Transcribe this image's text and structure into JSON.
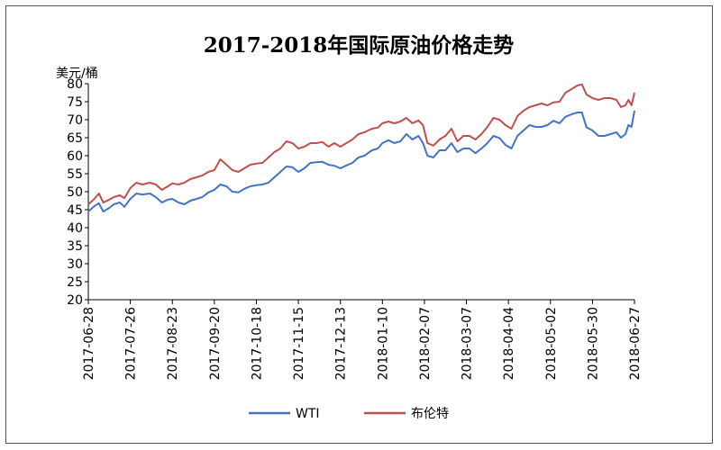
{
  "chart_data": {
    "type": "line",
    "title": "2017-2018年国际原油价格走势",
    "ylabel": "美元/桶",
    "ylim": [
      20,
      80
    ],
    "yticks": [
      20,
      25,
      30,
      35,
      40,
      45,
      50,
      55,
      60,
      65,
      70,
      75,
      80
    ],
    "xlim": [
      "2017-06-28",
      "2018-06-27"
    ],
    "xticks": [
      "2017-06-28",
      "2017-07-26",
      "2017-08-23",
      "2017-09-20",
      "2017-10-18",
      "2017-11-15",
      "2017-12-13",
      "2018-01-10",
      "2018-02-07",
      "2018-03-07",
      "2018-04-04",
      "2018-05-02",
      "2018-05-30",
      "2018-06-27"
    ],
    "grid": false,
    "legend": "bottom",
    "series": [
      {
        "name": "WTI",
        "color": "#4472c4",
        "points": [
          [
            "2017-06-28",
            44.5
          ],
          [
            "2017-07-02",
            46.0
          ],
          [
            "2017-07-05",
            46.8
          ],
          [
            "2017-07-08",
            44.5
          ],
          [
            "2017-07-12",
            45.5
          ],
          [
            "2017-07-15",
            46.5
          ],
          [
            "2017-07-19",
            47.0
          ],
          [
            "2017-07-22",
            45.8
          ],
          [
            "2017-07-26",
            48.0
          ],
          [
            "2017-07-30",
            49.5
          ],
          [
            "2017-08-03",
            49.2
          ],
          [
            "2017-08-08",
            49.5
          ],
          [
            "2017-08-12",
            48.5
          ],
          [
            "2017-08-16",
            47.0
          ],
          [
            "2017-08-20",
            47.8
          ],
          [
            "2017-08-23",
            48.0
          ],
          [
            "2017-08-27",
            47.0
          ],
          [
            "2017-08-31",
            46.5
          ],
          [
            "2017-09-04",
            47.5
          ],
          [
            "2017-09-08",
            48.0
          ],
          [
            "2017-09-12",
            48.5
          ],
          [
            "2017-09-16",
            49.8
          ],
          [
            "2017-09-20",
            50.5
          ],
          [
            "2017-09-24",
            52.0
          ],
          [
            "2017-09-28",
            51.5
          ],
          [
            "2017-10-02",
            50.0
          ],
          [
            "2017-10-06",
            49.8
          ],
          [
            "2017-10-10",
            50.8
          ],
          [
            "2017-10-14",
            51.5
          ],
          [
            "2017-10-18",
            51.8
          ],
          [
            "2017-10-22",
            52.0
          ],
          [
            "2017-10-26",
            52.5
          ],
          [
            "2017-10-30",
            54.0
          ],
          [
            "2017-11-03",
            55.5
          ],
          [
            "2017-11-07",
            57.0
          ],
          [
            "2017-11-11",
            56.8
          ],
          [
            "2017-11-15",
            55.5
          ],
          [
            "2017-11-19",
            56.5
          ],
          [
            "2017-11-23",
            58.0
          ],
          [
            "2017-11-27",
            58.2
          ],
          [
            "2017-12-01",
            58.3
          ],
          [
            "2017-12-05",
            57.5
          ],
          [
            "2017-12-09",
            57.2
          ],
          [
            "2017-12-13",
            56.5
          ],
          [
            "2017-12-17",
            57.3
          ],
          [
            "2017-12-21",
            58.0
          ],
          [
            "2017-12-25",
            59.5
          ],
          [
            "2017-12-29",
            60.0
          ],
          [
            "2018-01-03",
            61.5
          ],
          [
            "2018-01-07",
            62.0
          ],
          [
            "2018-01-10",
            63.5
          ],
          [
            "2018-01-14",
            64.3
          ],
          [
            "2018-01-18",
            63.5
          ],
          [
            "2018-01-22",
            64.0
          ],
          [
            "2018-01-26",
            66.0
          ],
          [
            "2018-01-30",
            64.5
          ],
          [
            "2018-02-03",
            65.5
          ],
          [
            "2018-02-06",
            63.5
          ],
          [
            "2018-02-09",
            60.0
          ],
          [
            "2018-02-13",
            59.5
          ],
          [
            "2018-02-17",
            61.5
          ],
          [
            "2018-02-21",
            61.5
          ],
          [
            "2018-02-25",
            63.5
          ],
          [
            "2018-03-01",
            61.0
          ],
          [
            "2018-03-05",
            62.0
          ],
          [
            "2018-03-09",
            62.0
          ],
          [
            "2018-03-13",
            60.7
          ],
          [
            "2018-03-17",
            62.0
          ],
          [
            "2018-03-21",
            63.5
          ],
          [
            "2018-03-25",
            65.5
          ],
          [
            "2018-03-29",
            64.9
          ],
          [
            "2018-04-02",
            63.0
          ],
          [
            "2018-04-06",
            62.0
          ],
          [
            "2018-04-10",
            65.5
          ],
          [
            "2018-04-14",
            67.0
          ],
          [
            "2018-04-18",
            68.5
          ],
          [
            "2018-04-22",
            68.0
          ],
          [
            "2018-04-26",
            68.0
          ],
          [
            "2018-04-30",
            68.5
          ],
          [
            "2018-05-04",
            69.7
          ],
          [
            "2018-05-08",
            69.0
          ],
          [
            "2018-05-12",
            70.8
          ],
          [
            "2018-05-16",
            71.5
          ],
          [
            "2018-05-20",
            72.0
          ],
          [
            "2018-05-23",
            72.0
          ],
          [
            "2018-05-26",
            67.9
          ],
          [
            "2018-05-30",
            67.0
          ],
          [
            "2018-06-03",
            65.5
          ],
          [
            "2018-06-07",
            65.5
          ],
          [
            "2018-06-11",
            66.0
          ],
          [
            "2018-06-15",
            66.5
          ],
          [
            "2018-06-18",
            65.0
          ],
          [
            "2018-06-21",
            66.0
          ],
          [
            "2018-06-23",
            68.5
          ],
          [
            "2018-06-25",
            68.0
          ],
          [
            "2018-06-27",
            72.5
          ]
        ]
      },
      {
        "name": "布伦特",
        "color": "#c0504d",
        "points": [
          [
            "2017-06-28",
            46.5
          ],
          [
            "2017-07-02",
            48.0
          ],
          [
            "2017-07-05",
            49.5
          ],
          [
            "2017-07-08",
            47.0
          ],
          [
            "2017-07-12",
            47.8
          ],
          [
            "2017-07-15",
            48.5
          ],
          [
            "2017-07-19",
            49.0
          ],
          [
            "2017-07-22",
            48.2
          ],
          [
            "2017-07-26",
            51.0
          ],
          [
            "2017-07-30",
            52.5
          ],
          [
            "2017-08-03",
            52.0
          ],
          [
            "2017-08-08",
            52.5
          ],
          [
            "2017-08-12",
            52.0
          ],
          [
            "2017-08-16",
            50.5
          ],
          [
            "2017-08-20",
            51.5
          ],
          [
            "2017-08-23",
            52.3
          ],
          [
            "2017-08-27",
            52.0
          ],
          [
            "2017-08-31",
            52.5
          ],
          [
            "2017-09-04",
            53.5
          ],
          [
            "2017-09-08",
            54.0
          ],
          [
            "2017-09-12",
            54.5
          ],
          [
            "2017-09-16",
            55.5
          ],
          [
            "2017-09-20",
            56.0
          ],
          [
            "2017-09-24",
            59.0
          ],
          [
            "2017-09-28",
            57.5
          ],
          [
            "2017-10-02",
            56.0
          ],
          [
            "2017-10-06",
            55.5
          ],
          [
            "2017-10-10",
            56.5
          ],
          [
            "2017-10-14",
            57.5
          ],
          [
            "2017-10-18",
            57.8
          ],
          [
            "2017-10-22",
            58.0
          ],
          [
            "2017-10-26",
            59.5
          ],
          [
            "2017-10-30",
            61.0
          ],
          [
            "2017-11-03",
            62.0
          ],
          [
            "2017-11-07",
            64.0
          ],
          [
            "2017-11-11",
            63.5
          ],
          [
            "2017-11-15",
            62.0
          ],
          [
            "2017-11-19",
            62.5
          ],
          [
            "2017-11-23",
            63.5
          ],
          [
            "2017-11-27",
            63.5
          ],
          [
            "2017-12-01",
            63.8
          ],
          [
            "2017-12-05",
            62.5
          ],
          [
            "2017-12-09",
            63.5
          ],
          [
            "2017-12-13",
            62.5
          ],
          [
            "2017-12-17",
            63.5
          ],
          [
            "2017-12-21",
            64.5
          ],
          [
            "2017-12-25",
            66.0
          ],
          [
            "2017-12-29",
            66.5
          ],
          [
            "2018-01-03",
            67.5
          ],
          [
            "2018-01-07",
            67.8
          ],
          [
            "2018-01-10",
            69.0
          ],
          [
            "2018-01-14",
            69.5
          ],
          [
            "2018-01-18",
            69.0
          ],
          [
            "2018-01-22",
            69.5
          ],
          [
            "2018-01-26",
            70.5
          ],
          [
            "2018-01-30",
            69.0
          ],
          [
            "2018-02-03",
            69.8
          ],
          [
            "2018-02-06",
            68.5
          ],
          [
            "2018-02-09",
            63.5
          ],
          [
            "2018-02-13",
            62.8
          ],
          [
            "2018-02-17",
            64.5
          ],
          [
            "2018-02-21",
            65.5
          ],
          [
            "2018-02-25",
            67.5
          ],
          [
            "2018-03-01",
            64.0
          ],
          [
            "2018-03-05",
            65.5
          ],
          [
            "2018-03-09",
            65.5
          ],
          [
            "2018-03-13",
            64.5
          ],
          [
            "2018-03-17",
            66.0
          ],
          [
            "2018-03-21",
            68.0
          ],
          [
            "2018-03-25",
            70.5
          ],
          [
            "2018-03-29",
            70.0
          ],
          [
            "2018-04-02",
            68.5
          ],
          [
            "2018-04-06",
            67.5
          ],
          [
            "2018-04-10",
            71.0
          ],
          [
            "2018-04-14",
            72.5
          ],
          [
            "2018-04-18",
            73.5
          ],
          [
            "2018-04-22",
            74.0
          ],
          [
            "2018-04-26",
            74.5
          ],
          [
            "2018-04-30",
            74.0
          ],
          [
            "2018-05-04",
            74.8
          ],
          [
            "2018-05-08",
            75.0
          ],
          [
            "2018-05-12",
            77.5
          ],
          [
            "2018-05-16",
            78.5
          ],
          [
            "2018-05-20",
            79.5
          ],
          [
            "2018-05-23",
            79.8
          ],
          [
            "2018-05-26",
            77.0
          ],
          [
            "2018-05-30",
            76.0
          ],
          [
            "2018-06-03",
            75.5
          ],
          [
            "2018-06-07",
            76.0
          ],
          [
            "2018-06-11",
            76.0
          ],
          [
            "2018-06-15",
            75.5
          ],
          [
            "2018-06-18",
            73.5
          ],
          [
            "2018-06-21",
            74.0
          ],
          [
            "2018-06-23",
            75.5
          ],
          [
            "2018-06-25",
            74.0
          ],
          [
            "2018-06-27",
            77.5
          ]
        ]
      }
    ]
  }
}
